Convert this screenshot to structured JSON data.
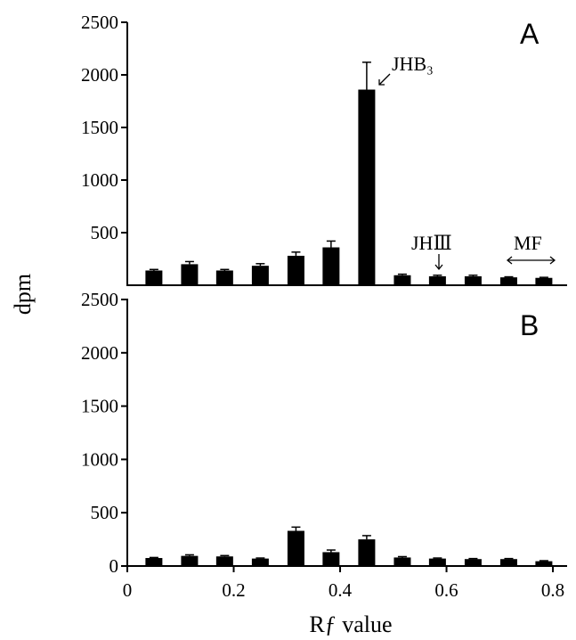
{
  "chart_data": [
    {
      "type": "bar",
      "panel": "A",
      "x": [
        0.05,
        0.117,
        0.183,
        0.25,
        0.317,
        0.383,
        0.45,
        0.517,
        0.583,
        0.65,
        0.717,
        0.783
      ],
      "values": [
        140,
        200,
        140,
        185,
        280,
        360,
        1860,
        95,
        85,
        85,
        75,
        70
      ],
      "errors": [
        10,
        25,
        10,
        20,
        35,
        60,
        260,
        10,
        10,
        10,
        5,
        5
      ],
      "ylabel": "dpm",
      "ylim": [
        0,
        2500
      ],
      "yticks": [
        500,
        1000,
        1500,
        2000,
        2500
      ],
      "xlim": [
        0,
        0.825
      ],
      "annotations": {
        "jhb3": "JHB₃",
        "jhiii": "JHⅢ",
        "mf": "MF"
      }
    },
    {
      "type": "bar",
      "panel": "B",
      "x": [
        0.05,
        0.117,
        0.183,
        0.25,
        0.317,
        0.383,
        0.45,
        0.517,
        0.583,
        0.65,
        0.717,
        0.783
      ],
      "values": [
        75,
        95,
        90,
        70,
        330,
        130,
        250,
        80,
        70,
        65,
        65,
        45
      ],
      "errors": [
        5,
        10,
        8,
        5,
        35,
        20,
        35,
        8,
        5,
        5,
        5,
        5
      ],
      "xlabel": "Rƒ value",
      "ylim": [
        0,
        2500
      ],
      "yticks": [
        0,
        500,
        1000,
        1500,
        2000,
        2500
      ],
      "xlim": [
        0,
        0.825
      ],
      "xticks": [
        "0",
        "0.2",
        "0.4",
        "0.6",
        "0.8"
      ],
      "xtick_values": [
        0,
        0.2,
        0.4,
        0.6,
        0.8
      ]
    }
  ]
}
